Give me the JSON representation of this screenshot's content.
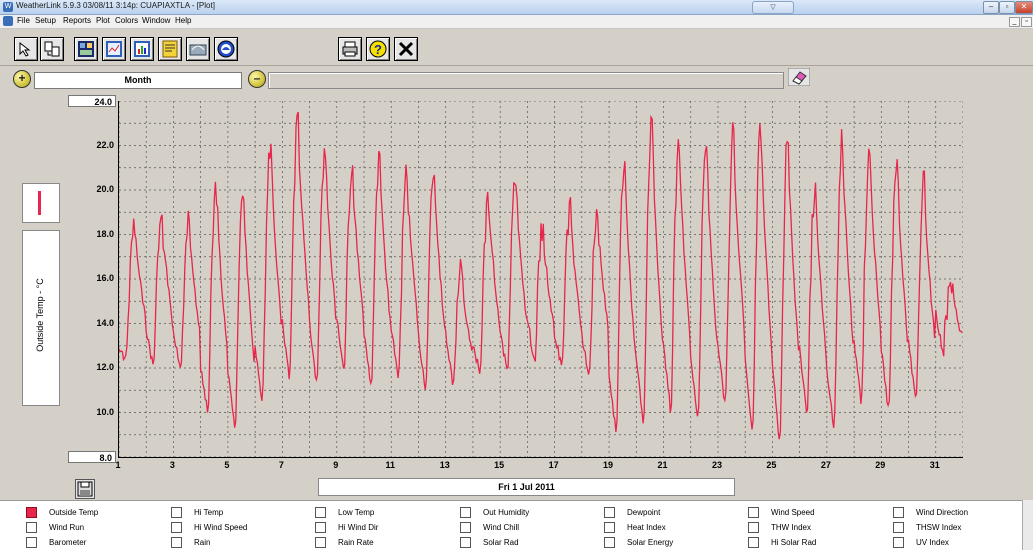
{
  "window": {
    "title": "WeatherLink 5.9.3  03/08/11  3:14p: CUAPIAXTLA - [Plot]",
    "restore_label": "▽",
    "minimize_label": "–",
    "maximize_label": "▫",
    "close_label": "✕"
  },
  "menu": {
    "items": [
      "File",
      "Setup",
      "Reports",
      "Plot",
      "Colors",
      "Window",
      "Help"
    ],
    "mdi_minimize": "_",
    "mdi_restore": "▫"
  },
  "toolbar": {
    "left_icons": [
      "select-station-icon",
      "download-icon",
      "bulletin-icon",
      "strip-chart-icon",
      "plot-icon",
      "notes-icon",
      "internet-icon",
      "noaa-icon"
    ],
    "right_icons": [
      "print-icon",
      "help-icon",
      "close-plot-icon"
    ]
  },
  "period": {
    "zoom_in_label": "+",
    "zoom_out_label": "–",
    "value": "Month",
    "detail": ""
  },
  "chart_data": {
    "type": "line",
    "ylabel": "Outside Temp - °C",
    "ylim": [
      8.0,
      24.0
    ],
    "yticks": [
      "24.0",
      "22.0",
      "20.0",
      "18.0",
      "16.0",
      "14.0",
      "12.0",
      "10.0",
      "8.0"
    ],
    "xlim": [
      1,
      32
    ],
    "xticks": [
      "1",
      "3",
      "5",
      "7",
      "9",
      "11",
      "13",
      "15",
      "17",
      "19",
      "21",
      "23",
      "25",
      "27",
      "29",
      "31"
    ],
    "xlabel": "Fri 1 Jul 2011",
    "grid": true,
    "series": [
      {
        "color": "#e8254a",
        "days_min_max": [
          [
            12.4,
            18.7
          ],
          [
            11.9,
            19.2
          ],
          [
            11.8,
            18.5
          ],
          [
            9.8,
            20.3
          ],
          [
            9.1,
            20.1
          ],
          [
            10.4,
            22.2
          ],
          [
            11.4,
            23.2
          ],
          [
            11.0,
            22.1
          ],
          [
            11.6,
            21.3
          ],
          [
            11.0,
            21.4
          ],
          [
            11.3,
            21.2
          ],
          [
            10.8,
            21.0
          ],
          [
            11.1,
            16.3
          ],
          [
            11.8,
            19.8
          ],
          [
            11.6,
            20.6
          ],
          [
            12.1,
            18.4
          ],
          [
            11.9,
            19.2
          ],
          [
            11.5,
            19.3
          ],
          [
            8.9,
            21.5
          ],
          [
            9.3,
            23.0
          ],
          [
            9.8,
            22.4
          ],
          [
            9.3,
            22.3
          ],
          [
            10.1,
            22.6
          ],
          [
            8.8,
            23.0
          ],
          [
            8.4,
            22.6
          ],
          [
            9.7,
            20.3
          ],
          [
            9.1,
            22.6
          ],
          [
            10.2,
            22.1
          ],
          [
            9.8,
            21.5
          ],
          [
            10.3,
            20.5
          ],
          [
            12.5,
            15.8
          ]
        ]
      }
    ]
  },
  "date_label": "Fri 1 Jul 2011",
  "series_panel": {
    "items": [
      {
        "label": "Outside Temp",
        "checked": true
      },
      {
        "label": "Hi Temp",
        "checked": false
      },
      {
        "label": "Low Temp",
        "checked": false
      },
      {
        "label": "Out Humidity",
        "checked": false
      },
      {
        "label": "Dewpoint",
        "checked": false
      },
      {
        "label": "Wind Speed",
        "checked": false
      },
      {
        "label": "Wind Direction",
        "checked": false
      },
      {
        "label": "Wind Run",
        "checked": false
      },
      {
        "label": "Hi Wind Speed",
        "checked": false
      },
      {
        "label": "Hi Wind Dir",
        "checked": false
      },
      {
        "label": "Wind Chill",
        "checked": false
      },
      {
        "label": "Heat Index",
        "checked": false
      },
      {
        "label": "THW Index",
        "checked": false
      },
      {
        "label": "THSW Index",
        "checked": false
      },
      {
        "label": "Barometer",
        "checked": false
      },
      {
        "label": "Rain",
        "checked": false
      },
      {
        "label": "Rain Rate",
        "checked": false
      },
      {
        "label": "Solar Rad",
        "checked": false
      },
      {
        "label": "Solar Energy",
        "checked": false
      },
      {
        "label": "Hi Solar Rad",
        "checked": false
      },
      {
        "label": "UV Index",
        "checked": false
      }
    ]
  }
}
